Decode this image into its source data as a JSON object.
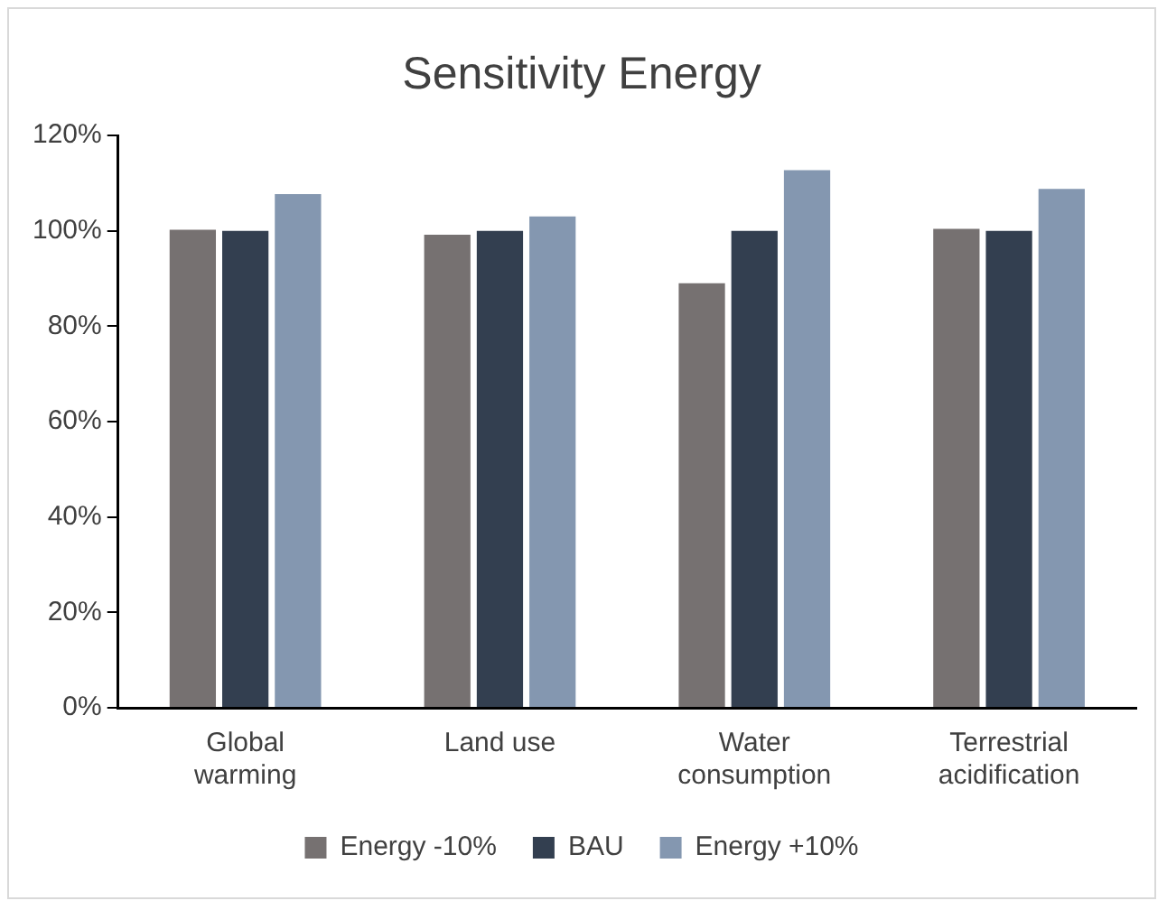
{
  "chart_data": {
    "type": "bar",
    "title": "Sensitivity Energy",
    "categories": [
      "Global warming",
      "Land use",
      "Water consumption",
      "Terrestrial acidification"
    ],
    "series": [
      {
        "name": "Energy -10%",
        "color": "#767171",
        "values": [
          100.2,
          99.2,
          89.0,
          100.4
        ]
      },
      {
        "name": "BAU",
        "color": "#333f50",
        "values": [
          100,
          100,
          100,
          100
        ]
      },
      {
        "name": "Energy +10%",
        "color": "#8497b0",
        "values": [
          107.7,
          103.0,
          112.7,
          108.8
        ]
      }
    ],
    "ylim": [
      0,
      120
    ],
    "yticks": [
      {
        "value": 0,
        "label": "0%"
      },
      {
        "value": 20,
        "label": "20%"
      },
      {
        "value": 40,
        "label": "40%"
      },
      {
        "value": 60,
        "label": "60%"
      },
      {
        "value": 80,
        "label": "80%"
      },
      {
        "value": 100,
        "label": "100%"
      },
      {
        "value": 120,
        "label": "120%"
      }
    ],
    "grid": false,
    "legend": "bottom"
  }
}
